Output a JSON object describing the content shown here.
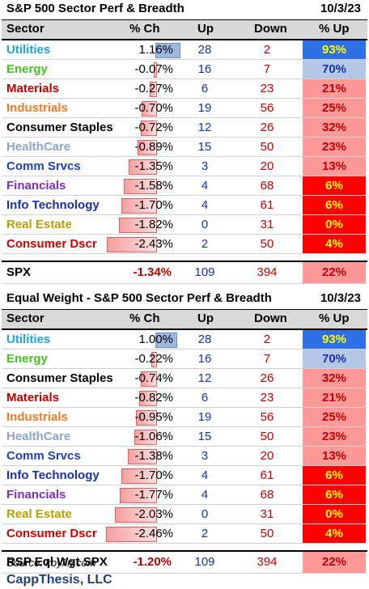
{
  "table1": {
    "title": "S&P 500 Sector Perf & Breadth",
    "date": "10/3/23",
    "headers": {
      "sector": "Sector",
      "pch": "% Ch",
      "up": "Up",
      "down": "Down",
      "pct_up": "% Up"
    },
    "rows": [
      {
        "sector": "Utilities",
        "color": "#1fa3d8",
        "pch": "1.16%",
        "pch_value": 1.16,
        "up": "28",
        "down": "2",
        "pct_up": "93%",
        "pct_value": 93
      },
      {
        "sector": "Energy",
        "color": "#43c31f",
        "pch": "-0.07%",
        "pch_value": -0.07,
        "up": "16",
        "down": "7",
        "pct_up": "70%",
        "pct_value": 70
      },
      {
        "sector": "Materials",
        "color": "#c00000",
        "pch": "-0.27%",
        "pch_value": -0.27,
        "up": "6",
        "down": "23",
        "pct_up": "21%",
        "pct_value": 21
      },
      {
        "sector": "Industrials",
        "color": "#f07a23",
        "pch": "-0.70%",
        "pch_value": -0.7,
        "up": "19",
        "down": "56",
        "pct_up": "25%",
        "pct_value": 25
      },
      {
        "sector": "Consumer Staples",
        "color": "#000000",
        "pch": "-0.72%",
        "pch_value": -0.72,
        "up": "12",
        "down": "26",
        "pct_up": "32%",
        "pct_value": 32
      },
      {
        "sector": "HealthCare",
        "color": "#8aa5c8",
        "pch": "-0.89%",
        "pch_value": -0.89,
        "up": "15",
        "down": "50",
        "pct_up": "23%",
        "pct_value": 23
      },
      {
        "sector": "Comm Srvcs",
        "color": "#1f3fbf",
        "pch": "-1.35%",
        "pch_value": -1.35,
        "up": "3",
        "down": "20",
        "pct_up": "13%",
        "pct_value": 13
      },
      {
        "sector": "Financials",
        "color": "#7b2fc0",
        "pch": "-1.58%",
        "pch_value": -1.58,
        "up": "4",
        "down": "68",
        "pct_up": "6%",
        "pct_value": 6
      },
      {
        "sector": "Info Technology",
        "color": "#1a2faa",
        "pch": "-1.70%",
        "pch_value": -1.7,
        "up": "4",
        "down": "61",
        "pct_up": "6%",
        "pct_value": 6
      },
      {
        "sector": "Real Estate",
        "color": "#b8a000",
        "pch": "-1.82%",
        "pch_value": -1.82,
        "up": "0",
        "down": "31",
        "pct_up": "0%",
        "pct_value": 0
      },
      {
        "sector": "Consumer Dscr",
        "color": "#d00000",
        "pch": "-2.43%",
        "pch_value": -2.43,
        "up": "2",
        "down": "50",
        "pct_up": "4%",
        "pct_value": 4
      }
    ],
    "total": {
      "label": "SPX",
      "pch": "-1.34%",
      "up": "109",
      "down": "394",
      "pct_up": "22%",
      "pct_value": 22
    }
  },
  "table2": {
    "title": "Equal Weight - S&P 500 Sector Perf & Breadth",
    "date": "10/3/23",
    "headers": {
      "sector": "Sector",
      "pch": "% Ch",
      "up": "Up",
      "down": "Down",
      "pct_up": "% Up"
    },
    "rows": [
      {
        "sector": "Utilities",
        "color": "#1fa3d8",
        "pch": "1.00%",
        "pch_value": 1.0,
        "up": "28",
        "down": "2",
        "pct_up": "93%",
        "pct_value": 93
      },
      {
        "sector": "Energy",
        "color": "#43c31f",
        "pch": "-0.22%",
        "pch_value": -0.22,
        "up": "16",
        "down": "7",
        "pct_up": "70%",
        "pct_value": 70
      },
      {
        "sector": "Consumer Staples",
        "color": "#000000",
        "pch": "-0.74%",
        "pch_value": -0.74,
        "up": "12",
        "down": "26",
        "pct_up": "32%",
        "pct_value": 32
      },
      {
        "sector": "Materials",
        "color": "#c00000",
        "pch": "-0.82%",
        "pch_value": -0.82,
        "up": "6",
        "down": "23",
        "pct_up": "21%",
        "pct_value": 21
      },
      {
        "sector": "Industrials",
        "color": "#f07a23",
        "pch": "-0.95%",
        "pch_value": -0.95,
        "up": "19",
        "down": "56",
        "pct_up": "25%",
        "pct_value": 25
      },
      {
        "sector": "HealthCare",
        "color": "#8aa5c8",
        "pch": "-1.06%",
        "pch_value": -1.06,
        "up": "15",
        "down": "50",
        "pct_up": "23%",
        "pct_value": 23
      },
      {
        "sector": "Comm Srvcs",
        "color": "#1f3fbf",
        "pch": "-1.38%",
        "pch_value": -1.38,
        "up": "3",
        "down": "20",
        "pct_up": "13%",
        "pct_value": 13
      },
      {
        "sector": "Info Technology",
        "color": "#1a2faa",
        "pch": "-1.70%",
        "pch_value": -1.7,
        "up": "4",
        "down": "61",
        "pct_up": "6%",
        "pct_value": 6
      },
      {
        "sector": "Financials",
        "color": "#7b2fc0",
        "pch": "-1.77%",
        "pch_value": -1.77,
        "up": "4",
        "down": "68",
        "pct_up": "6%",
        "pct_value": 6
      },
      {
        "sector": "Real Estate",
        "color": "#b8a000",
        "pch": "-2.03%",
        "pch_value": -2.03,
        "up": "0",
        "down": "31",
        "pct_up": "0%",
        "pct_value": 0
      },
      {
        "sector": "Consumer Dscr",
        "color": "#d00000",
        "pch": "-2.46%",
        "pch_value": -2.46,
        "up": "2",
        "down": "50",
        "pct_up": "4%",
        "pct_value": 4
      }
    ],
    "total": {
      "label": "RSP Eql Wgt SPX",
      "pch": "-1.20%",
      "up": "109",
      "down": "394",
      "pct_up": "22%",
      "pct_value": 22
    }
  },
  "footer": {
    "source": "Source: koyfin.com",
    "brand": "CappThesis, LLC"
  },
  "colors": {
    "pct_high": "#2f6fe6",
    "pct_mid": "#b4c7e7",
    "pct_low": "#ff9999",
    "pct_very_low": "#ff0000",
    "bar_pos": "#9db7de",
    "bar_neg": "#f4a0a0"
  }
}
